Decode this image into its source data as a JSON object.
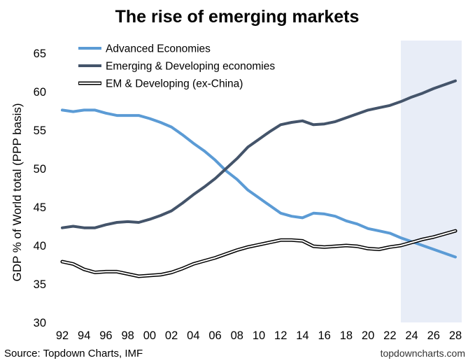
{
  "chart_data": {
    "type": "line",
    "title": "The rise of emerging markets",
    "xlabel": "",
    "ylabel": "GDP % of World total (PPP basis)",
    "ylim": [
      30,
      65
    ],
    "yticks": [
      30,
      35,
      40,
      45,
      50,
      55,
      60,
      65
    ],
    "xlim": [
      1992,
      2028
    ],
    "x": [
      1992,
      1993,
      1994,
      1995,
      1996,
      1997,
      1998,
      1999,
      2000,
      2001,
      2002,
      2003,
      2004,
      2005,
      2006,
      2007,
      2008,
      2009,
      2010,
      2011,
      2012,
      2013,
      2014,
      2015,
      2016,
      2017,
      2018,
      2019,
      2020,
      2021,
      2022,
      2023,
      2024,
      2025,
      2026,
      2027,
      2028
    ],
    "xtick_values": [
      1992,
      1994,
      1996,
      1998,
      2000,
      2002,
      2004,
      2006,
      2008,
      2010,
      2012,
      2014,
      2016,
      2018,
      2020,
      2022,
      2024,
      2026,
      2028
    ],
    "xtick_labels": [
      "92",
      "94",
      "96",
      "98",
      "00",
      "02",
      "04",
      "06",
      "08",
      "10",
      "12",
      "14",
      "16",
      "18",
      "20",
      "22",
      "24",
      "26",
      "28"
    ],
    "forecast_start": 2023,
    "grid": false,
    "legend_position": "top-left",
    "series": [
      {
        "name": "Advanced Economies",
        "color": "#5b9bd5",
        "style": "solid",
        "values": [
          57.6,
          57.4,
          57.6,
          57.6,
          57.2,
          56.9,
          56.9,
          56.9,
          56.5,
          56.0,
          55.4,
          54.4,
          53.3,
          52.3,
          51.1,
          49.7,
          48.6,
          47.2,
          46.2,
          45.2,
          44.2,
          43.8,
          43.6,
          44.2,
          44.1,
          43.8,
          43.2,
          42.8,
          42.2,
          41.9,
          41.6,
          41.0,
          40.5,
          40.0,
          39.5,
          39.0,
          38.5
        ]
      },
      {
        "name": "Emerging & Developing economies",
        "color": "#44546a",
        "style": "solid",
        "values": [
          42.3,
          42.5,
          42.3,
          42.3,
          42.7,
          43.0,
          43.1,
          43.0,
          43.4,
          43.9,
          44.5,
          45.5,
          46.6,
          47.6,
          48.7,
          50.0,
          51.3,
          52.8,
          53.8,
          54.8,
          55.7,
          56.0,
          56.2,
          55.7,
          55.8,
          56.1,
          56.6,
          57.1,
          57.6,
          57.9,
          58.2,
          58.7,
          59.3,
          59.8,
          60.4,
          60.9,
          61.4
        ]
      },
      {
        "name": "EM & Developing (ex-China)",
        "color": "#000000",
        "style": "double",
        "values": [
          37.9,
          37.6,
          36.9,
          36.5,
          36.6,
          36.6,
          36.3,
          36.0,
          36.1,
          36.2,
          36.5,
          37.0,
          37.6,
          38.0,
          38.4,
          38.9,
          39.4,
          39.8,
          40.1,
          40.4,
          40.7,
          40.7,
          40.6,
          39.9,
          39.8,
          39.9,
          40.0,
          39.9,
          39.6,
          39.5,
          39.8,
          40.0,
          40.4,
          40.8,
          41.1,
          41.5,
          41.9
        ]
      }
    ]
  },
  "footer": {
    "source": "Source: Topdown Charts, IMF",
    "brand": "topdowncharts.com"
  }
}
